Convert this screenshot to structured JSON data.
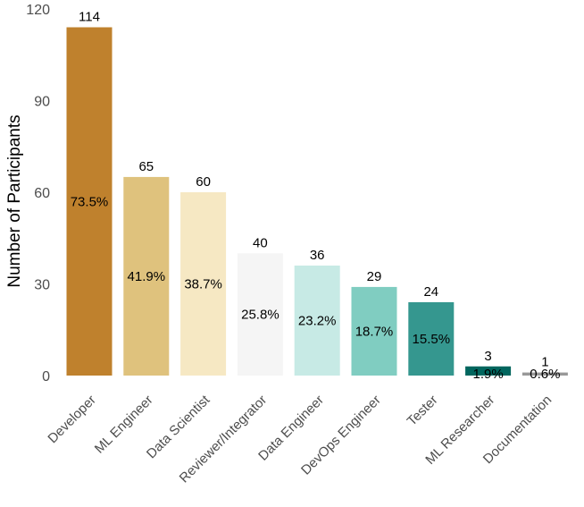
{
  "chart_data": {
    "type": "bar",
    "title": "",
    "xlabel": "",
    "ylabel": "Number of Participants",
    "ylim": [
      0,
      120
    ],
    "yticks": [
      0,
      30,
      60,
      90,
      120
    ],
    "grid": false,
    "categories": [
      "Developer",
      "ML Engineer",
      "Data Scientist",
      "Reviewer/Integrator",
      "Data Engineer",
      "DevOps Engineer",
      "Tester",
      "ML Researcher",
      "Documentation"
    ],
    "values": [
      114,
      65,
      60,
      40,
      36,
      29,
      24,
      3,
      1
    ],
    "percent_labels": [
      "73.5%",
      "41.9%",
      "38.7%",
      "25.8%",
      "23.2%",
      "18.7%",
      "15.5%",
      "1.9%",
      "0.6%"
    ],
    "colors": [
      "#bf812d",
      "#dfc27d",
      "#f6e8c3",
      "#f5f5f5",
      "#c7eae5",
      "#80cdc1",
      "#35978f",
      "#01665e",
      "#999999"
    ]
  }
}
